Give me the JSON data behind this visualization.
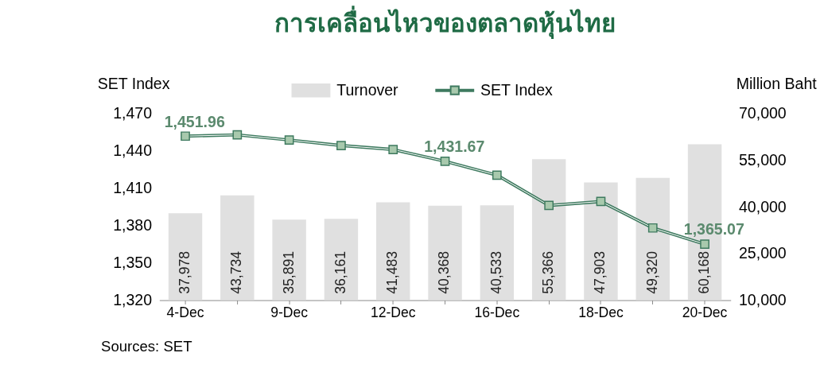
{
  "chart_data": {
    "type": "bar",
    "title": "การเคลื่อนไหวของตลาดหุ้นไทย",
    "categories": [
      "4-Dec",
      null,
      "9-Dec",
      null,
      "12-Dec",
      null,
      "16-Dec",
      null,
      "18-Dec",
      null,
      "20-Dec"
    ],
    "series": [
      {
        "name": "Turnover",
        "axis": "y2",
        "color": "#e0e0e0",
        "values": [
          37978,
          43734,
          35891,
          36161,
          41483,
          40368,
          40533,
          55366,
          47903,
          49320,
          60168
        ],
        "value_labels": [
          "37,978",
          "43,734",
          "35,891",
          "36,161",
          "41,483",
          "40,368",
          "40,533",
          "55,366",
          "47,903",
          "49,320",
          "60,168"
        ]
      },
      {
        "name": "SET Index",
        "type": "line",
        "axis": "y",
        "color": "#3e7a5f",
        "marker": "square",
        "values": [
          1451.96,
          1453,
          1448.8,
          1444.4,
          1441.2,
          1431.67,
          1420.6,
          1396.2,
          1399.4,
          1378.1,
          1365.07
        ],
        "value_labels": [
          "1,451.96",
          null,
          null,
          null,
          null,
          "1,431.67",
          null,
          null,
          null,
          null,
          "1,365.07"
        ]
      }
    ],
    "ylabel": "SET Index",
    "y2label": "Million Baht",
    "ylim": [
      1320,
      1470
    ],
    "yticks": [
      {
        "value": 1320,
        "label": "1,320"
      },
      {
        "value": 1350,
        "label": "1,350"
      },
      {
        "value": 1380,
        "label": "1,380"
      },
      {
        "value": 1410,
        "label": "1,410"
      },
      {
        "value": 1440,
        "label": "1,440"
      },
      {
        "value": 1470,
        "label": "1,470"
      }
    ],
    "y2lim": [
      10000,
      70000
    ],
    "y2ticks": [
      {
        "value": 10000,
        "label": "10,000"
      },
      {
        "value": 25000,
        "label": "25,000"
      },
      {
        "value": 40000,
        "label": "40,000"
      },
      {
        "value": 55000,
        "label": "55,000"
      },
      {
        "value": 70000,
        "label": "70,000"
      }
    ],
    "legend": "top",
    "grid": false,
    "annotations": [
      "Sources: SET"
    ]
  }
}
